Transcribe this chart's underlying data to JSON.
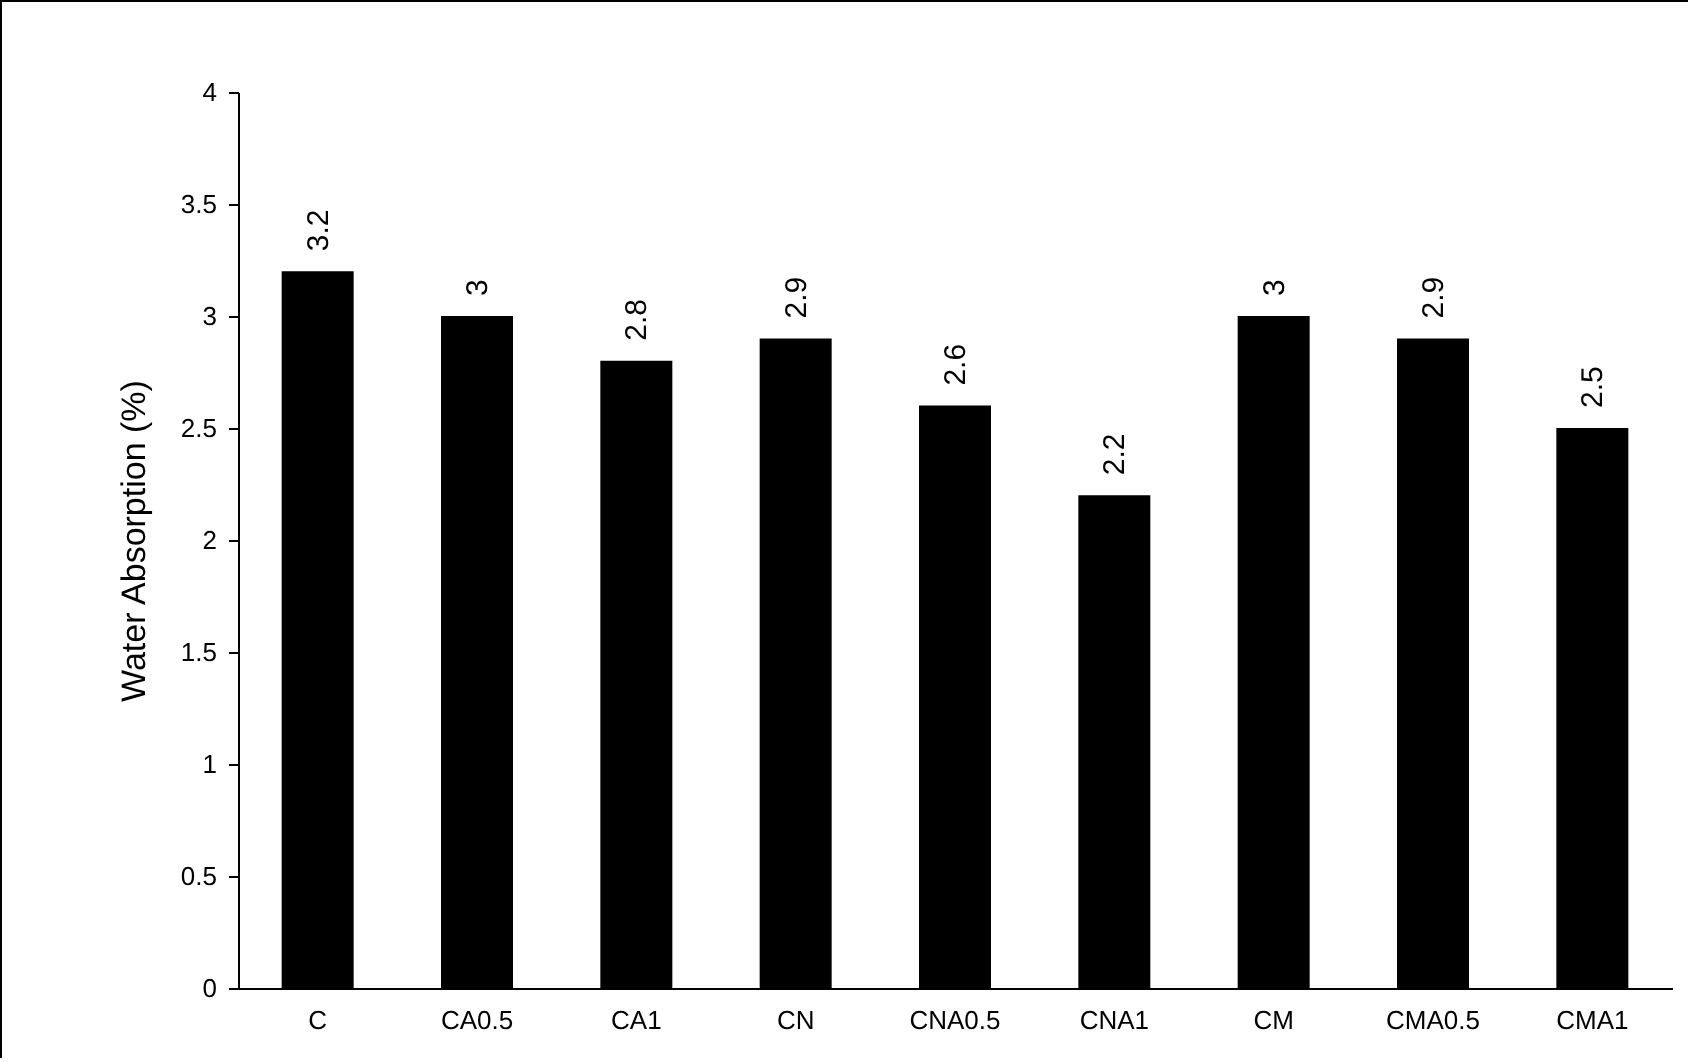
{
  "chart_data": {
    "type": "bar",
    "ylabel": "Water Absorption (%)",
    "categories": [
      "C",
      "CA0.5",
      "CA1",
      "CN",
      "CNA0.5",
      "CNA1",
      "CM",
      "CMA0.5",
      "CMA1"
    ],
    "values": [
      3.2,
      3,
      2.8,
      2.9,
      2.6,
      2.2,
      3,
      2.9,
      2.5
    ],
    "color": "#000000",
    "ylim": [
      0,
      4
    ],
    "yticks": [
      0,
      0.5,
      1,
      1.5,
      2,
      2.5,
      3,
      3.5,
      4
    ],
    "data_labels": true
  }
}
